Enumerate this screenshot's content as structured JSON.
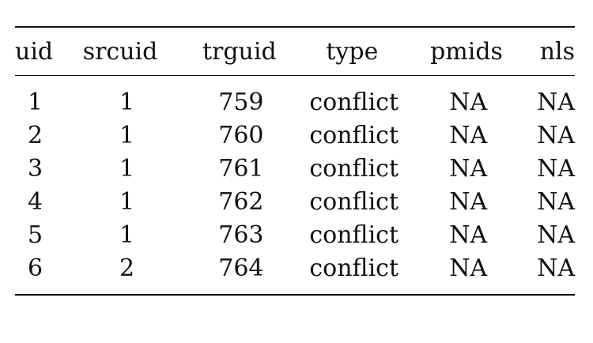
{
  "table": {
    "columns": [
      "uid",
      "srcuid",
      "trguid",
      "type",
      "pmids",
      "nls"
    ],
    "rows": [
      [
        "1",
        "1",
        "759",
        "conflict",
        "NA",
        "NA"
      ],
      [
        "2",
        "1",
        "760",
        "conflict",
        "NA",
        "NA"
      ],
      [
        "3",
        "1",
        "761",
        "conflict",
        "NA",
        "NA"
      ],
      [
        "4",
        "1",
        "762",
        "conflict",
        "NA",
        "NA"
      ],
      [
        "5",
        "1",
        "763",
        "conflict",
        "NA",
        "NA"
      ],
      [
        "6",
        "2",
        "764",
        "conflict",
        "NA",
        "NA"
      ]
    ]
  }
}
